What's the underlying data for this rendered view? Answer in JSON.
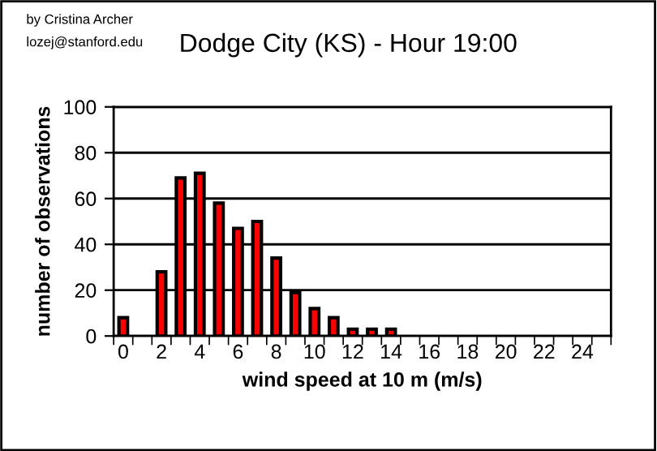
{
  "chart_data": {
    "type": "bar",
    "title": "Dodge City (KS) - Hour 19:00",
    "xlabel": "wind speed at 10 m (m/s)",
    "ylabel": "number of observations",
    "annotations": [
      "by Cristina Archer",
      "lozej@stanford.edu"
    ],
    "categories": [
      "0",
      null,
      "2",
      null,
      "4",
      null,
      "6",
      null,
      "8",
      null,
      "10",
      null,
      "12",
      null,
      "14",
      null,
      "16",
      null,
      "18",
      null,
      "20",
      null,
      "22",
      null,
      "24",
      null
    ],
    "values": [
      8,
      0,
      28,
      69,
      71,
      58,
      47,
      50,
      34,
      19,
      12,
      8,
      3,
      3,
      3,
      0,
      0,
      0,
      0,
      0,
      0,
      0,
      0,
      0,
      0,
      0
    ],
    "color": "#ff0000",
    "ylim": [
      0,
      100
    ],
    "yticks": [
      0,
      20,
      40,
      60,
      80,
      100
    ],
    "grid": "y"
  }
}
